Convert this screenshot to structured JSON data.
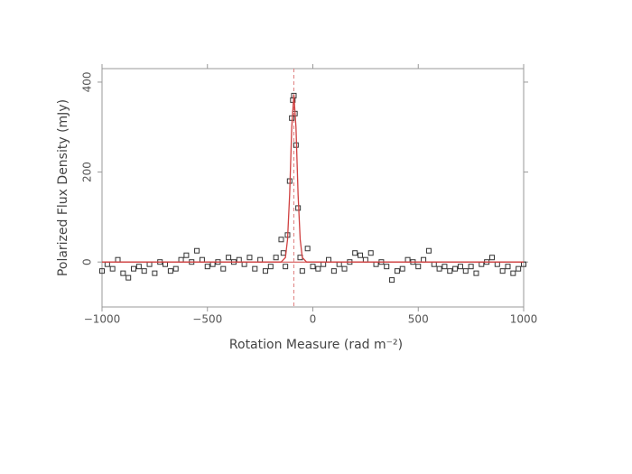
{
  "chart_data": {
    "type": "scatter",
    "xlabel": "Rotation Measure (rad m⁻²)",
    "ylabel": "Polarized Flux Density (mJy)",
    "xlim": [
      -1000,
      1000
    ],
    "ylim": [
      -100,
      430
    ],
    "xticks": [
      {
        "value": -1000,
        "label": "−1000"
      },
      {
        "value": -500,
        "label": "−500"
      },
      0,
      500,
      1000
    ],
    "yticks": [
      0,
      200,
      400
    ],
    "vline": -90,
    "vline_color": "#e08080",
    "hline": 0,
    "series": [
      {
        "type": "scatter",
        "color": "#333333",
        "x": [
          -1000,
          -975,
          -950,
          -925,
          -900,
          -875,
          -850,
          -825,
          -800,
          -775,
          -750,
          -725,
          -700,
          -675,
          -650,
          -625,
          -600,
          -575,
          -550,
          -525,
          -500,
          -475,
          -450,
          -425,
          -400,
          -375,
          -350,
          -325,
          -300,
          -275,
          -250,
          -225,
          -200,
          -175,
          -150,
          -140,
          -130,
          -120,
          -110,
          -100,
          -95,
          -90,
          -85,
          -80,
          -70,
          -60,
          -50,
          -25,
          0,
          25,
          50,
          75,
          100,
          125,
          150,
          175,
          200,
          225,
          250,
          275,
          300,
          325,
          350,
          375,
          400,
          425,
          450,
          475,
          500,
          525,
          550,
          575,
          600,
          625,
          650,
          675,
          700,
          725,
          750,
          775,
          800,
          825,
          850,
          875,
          900,
          925,
          950,
          975,
          1000
        ],
        "values": [
          -20,
          -5,
          -15,
          5,
          -25,
          -35,
          -15,
          -10,
          -20,
          -5,
          -25,
          0,
          -5,
          -20,
          -15,
          5,
          15,
          0,
          25,
          5,
          -10,
          -5,
          0,
          -15,
          10,
          0,
          5,
          -5,
          10,
          -15,
          5,
          -20,
          -10,
          10,
          50,
          20,
          -10,
          60,
          180,
          320,
          360,
          370,
          330,
          260,
          120,
          10,
          -20,
          30,
          -10,
          -15,
          -5,
          5,
          -20,
          -5,
          -15,
          0,
          20,
          15,
          5,
          20,
          -5,
          0,
          -10,
          -40,
          -20,
          -15,
          5,
          0,
          -10,
          5,
          25,
          -5,
          -15,
          -10,
          -20,
          -15,
          -10,
          -20,
          -10,
          -25,
          -5,
          0,
          10,
          -5,
          -20,
          -10,
          -25,
          -15,
          -5
        ]
      },
      {
        "type": "line",
        "color": "#d04040",
        "x": [
          -1000,
          -150,
          -130,
          -120,
          -110,
          -100,
          -90,
          -80,
          -70,
          -60,
          -50,
          -30,
          1000
        ],
        "values": [
          0,
          0,
          10,
          50,
          150,
          300,
          372,
          300,
          150,
          50,
          10,
          0,
          0
        ]
      }
    ]
  }
}
